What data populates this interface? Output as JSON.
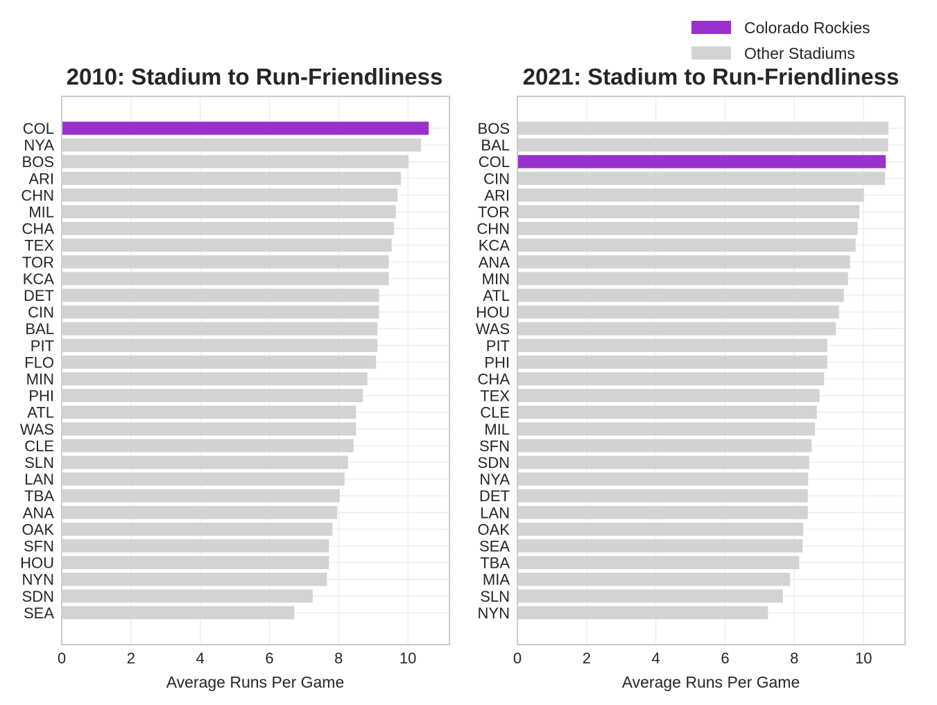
{
  "legend": {
    "items": [
      {
        "label": "Colorado Rockies",
        "color": "#9932cc"
      },
      {
        "label": "Other Stadiums",
        "color": "#d3d3d3"
      }
    ]
  },
  "chart_data": [
    {
      "type": "bar",
      "orientation": "horizontal",
      "title": "2010: Stadium to Run-Friendliness",
      "xlabel": "Average Runs Per Game",
      "ylabel": "",
      "xlim": [
        0,
        11.2
      ],
      "xticks": [
        0,
        2,
        4,
        6,
        8,
        10
      ],
      "grid": true,
      "highlight": "COL",
      "categories": [
        "COL",
        "NYA",
        "BOS",
        "ARI",
        "CHN",
        "MIL",
        "CHA",
        "TEX",
        "TOR",
        "KCA",
        "DET",
        "CIN",
        "BAL",
        "PIT",
        "FLO",
        "MIN",
        "PHI",
        "ATL",
        "WAS",
        "CLE",
        "SLN",
        "LAN",
        "TBA",
        "ANA",
        "OAK",
        "SFN",
        "HOU",
        "NYN",
        "SDN",
        "SEA"
      ],
      "values": [
        10.6,
        10.38,
        10.02,
        9.8,
        9.7,
        9.65,
        9.6,
        9.53,
        9.45,
        9.45,
        9.17,
        9.17,
        9.12,
        9.12,
        9.08,
        8.83,
        8.7,
        8.5,
        8.5,
        8.43,
        8.27,
        8.17,
        8.03,
        7.96,
        7.82,
        7.72,
        7.72,
        7.66,
        7.25,
        6.72
      ]
    },
    {
      "type": "bar",
      "orientation": "horizontal",
      "title": "2021: Stadium to Run-Friendliness",
      "xlabel": "Average Runs Per Game",
      "ylabel": "",
      "xlim": [
        0,
        11.2
      ],
      "xticks": [
        0,
        2,
        4,
        6,
        8,
        10
      ],
      "grid": true,
      "highlight": "COL",
      "categories": [
        "BOS",
        "BAL",
        "COL",
        "CIN",
        "ARI",
        "TOR",
        "CHN",
        "KCA",
        "ANA",
        "MIN",
        "ATL",
        "HOU",
        "WAS",
        "PIT",
        "PHI",
        "CHA",
        "TEX",
        "CLE",
        "MIL",
        "SFN",
        "SDN",
        "NYA",
        "DET",
        "LAN",
        "OAK",
        "SEA",
        "TBA",
        "MIA",
        "SLN",
        "NYN"
      ],
      "values": [
        10.72,
        10.71,
        10.64,
        10.62,
        10.01,
        9.88,
        9.83,
        9.77,
        9.61,
        9.55,
        9.43,
        9.29,
        9.2,
        8.95,
        8.95,
        8.86,
        8.73,
        8.65,
        8.6,
        8.5,
        8.43,
        8.4,
        8.39,
        8.39,
        8.26,
        8.24,
        8.14,
        7.88,
        7.67,
        7.24
      ]
    }
  ]
}
